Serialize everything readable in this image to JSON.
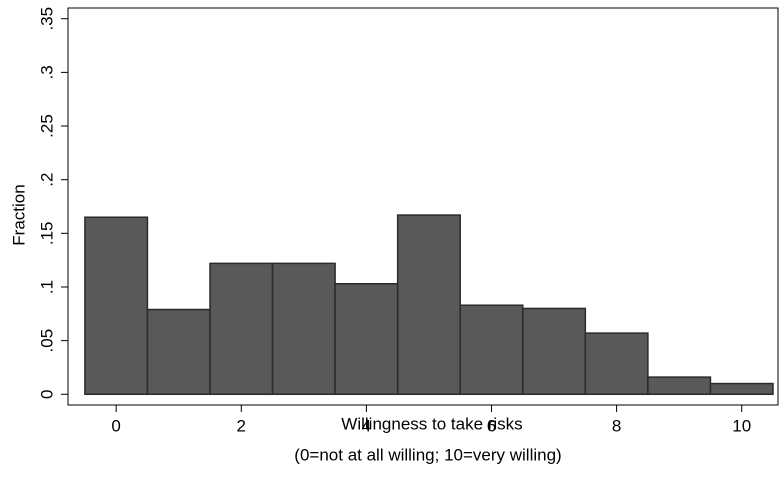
{
  "chart_data": {
    "type": "histogram",
    "xlabel": "Willingness to take risks",
    "xlabel_note": "(0=not at all willing; 10=very willing)",
    "ylabel": "Fraction",
    "bins": [
      -0.5,
      0.5,
      1.5,
      2.5,
      3.5,
      4.5,
      5.5,
      6.5,
      7.5,
      8.5,
      9.5,
      10.5
    ],
    "values": [
      0.165,
      0.079,
      0.122,
      0.122,
      0.103,
      0.167,
      0.083,
      0.08,
      0.057,
      0.016,
      0.01
    ],
    "color": "#595959",
    "edge_color": "#2b2b2b",
    "xlim": [
      -0.77,
      10.58
    ],
    "xticks": [
      0,
      2,
      4,
      6,
      8,
      10
    ],
    "ylim": [
      -0.01,
      0.36
    ],
    "yticks": [
      0,
      {
        "value": 0.05,
        "label": ".05"
      },
      {
        "value": 0.1,
        "label": ".1"
      },
      {
        "value": 0.15,
        "label": ".15"
      },
      {
        "value": 0.2,
        "label": ".2"
      },
      {
        "value": 0.25,
        "label": ".25"
      },
      {
        "value": 0.3,
        "label": ".3"
      },
      {
        "value": 0.35,
        "label": ".35"
      }
    ]
  }
}
